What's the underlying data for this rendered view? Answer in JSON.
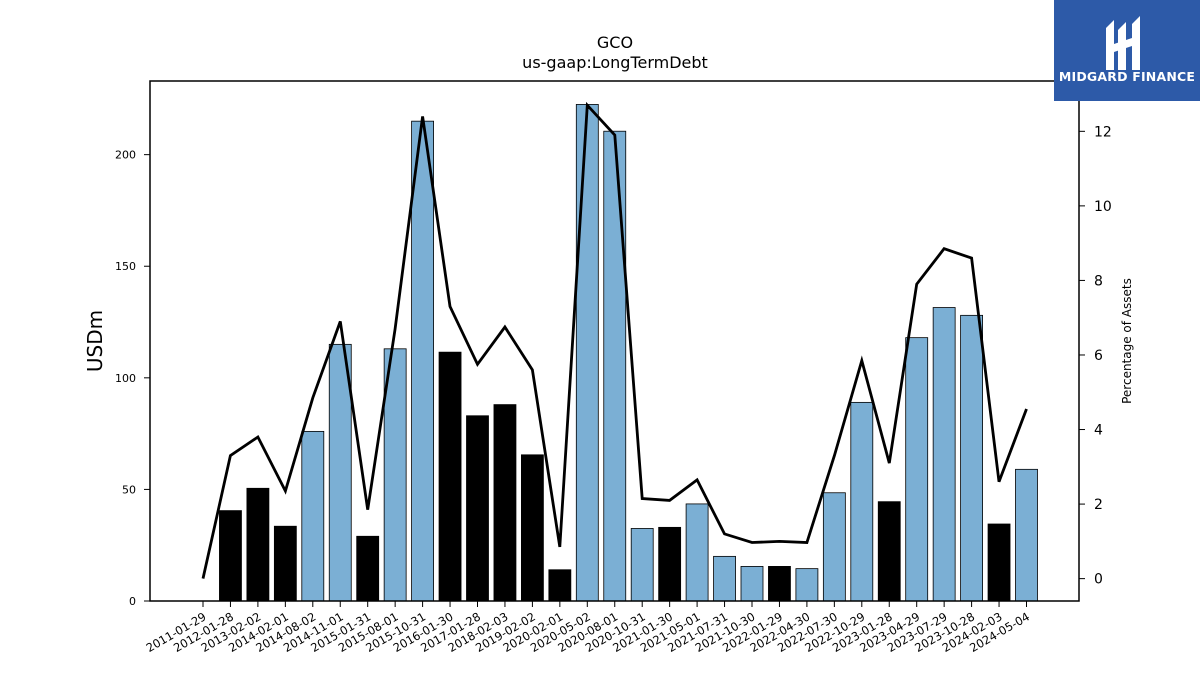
{
  "chart_data": {
    "type": "bar",
    "title": "GCO",
    "subtitle": "us-gaap:LongTermDebt",
    "ylabel": "USDm",
    "y2label": "Percentage of Assets",
    "ylim": [
      0,
      233
    ],
    "y2lim": [
      -0.6,
      13.35
    ],
    "yticks": [
      0,
      50,
      100,
      150,
      200
    ],
    "y2ticks": [
      0,
      2,
      4,
      6,
      8,
      10,
      12
    ],
    "grid": false,
    "colors": {
      "blue": "#7bafd4",
      "black": "#000000",
      "line": "#000000"
    },
    "categories": [
      "2011-01-29",
      "2012-01-28",
      "2013-02-02",
      "2014-02-01",
      "2014-08-02",
      "2014-11-01",
      "2015-01-31",
      "2015-08-01",
      "2015-10-31",
      "2016-01-30",
      "2017-01-28",
      "2018-02-03",
      "2019-02-02",
      "2020-02-01",
      "2020-05-02",
      "2020-08-01",
      "2020-10-31",
      "2021-01-30",
      "2021-05-01",
      "2021-07-31",
      "2021-10-30",
      "2022-01-29",
      "2022-04-30",
      "2022-07-30",
      "2022-10-29",
      "2023-01-28",
      "2023-04-29",
      "2023-07-29",
      "2023-10-28",
      "2024-02-03",
      "2024-05-04"
    ],
    "series": [
      {
        "type": "bar",
        "values": [
          0,
          40.5,
          50.5,
          33.5,
          76,
          115,
          29,
          113,
          215,
          111.5,
          83,
          88,
          65.5,
          14,
          222.5,
          210.5,
          32.5,
          33,
          43.5,
          20,
          15.5,
          15.5,
          14.5,
          48.5,
          89,
          44.5,
          118,
          131.5,
          128,
          34.5,
          59
        ],
        "bar_colors": [
          "blue",
          "black",
          "black",
          "black",
          "blue",
          "blue",
          "black",
          "blue",
          "blue",
          "black",
          "black",
          "black",
          "black",
          "black",
          "blue",
          "blue",
          "blue",
          "black",
          "blue",
          "blue",
          "blue",
          "black",
          "blue",
          "blue",
          "blue",
          "black",
          "blue",
          "blue",
          "blue",
          "black",
          "blue"
        ]
      },
      {
        "type": "line",
        "axis": "right",
        "values": [
          0,
          3.3,
          3.8,
          2.35,
          4.85,
          6.9,
          1.85,
          6.7,
          12.4,
          7.3,
          5.75,
          6.75,
          5.6,
          0.85,
          12.7,
          11.9,
          2.15,
          2.1,
          2.65,
          1.2,
          0.97,
          1.0,
          0.97,
          3.3,
          5.85,
          3.1,
          7.9,
          8.85,
          8.6,
          2.6,
          4.55
        ]
      }
    ]
  },
  "logo": {
    "text": "MIDGARD FINANCE"
  }
}
